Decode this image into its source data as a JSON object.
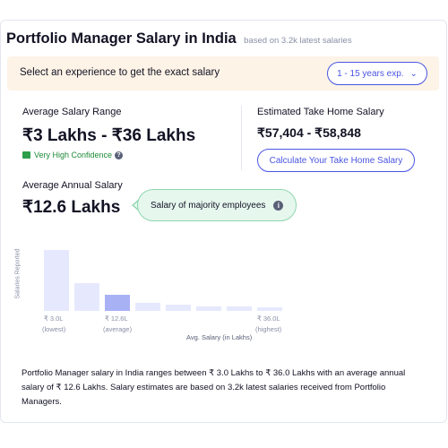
{
  "header": {
    "title": "Portfolio Manager Salary in India",
    "subtitle": "based on 3.2k latest salaries"
  },
  "banner": {
    "label": "Select an experience to get the exact salary",
    "experience_button": "1 - 15 years exp."
  },
  "salary_range": {
    "label": "Average Salary Range",
    "value": "₹3 Lakhs - ₹36 Lakhs",
    "confidence": "Very High Confidence"
  },
  "take_home": {
    "label": "Estimated Take Home Salary",
    "value": "₹57,404 - ₹58,848",
    "button": "Calculate Your Take Home Salary"
  },
  "annual": {
    "label": "Average Annual Salary",
    "value": "₹12.6 Lakhs",
    "tooltip": "Salary of majority employees"
  },
  "chart_data": {
    "type": "bar",
    "ylabel": "Salaries Reported",
    "xlabel": "Avg. Salary (in Lakhs)",
    "values": [
      100,
      46,
      26,
      13,
      11,
      8,
      7,
      6
    ],
    "highlight_index": 2,
    "ticks": [
      {
        "index": 0,
        "value": "₹ 3.0L",
        "note": "(lowest)"
      },
      {
        "index": 2,
        "value": "₹ 12.6L",
        "note": "(average)"
      },
      {
        "index": 7,
        "value": "₹ 36.0L",
        "note": "(highest)"
      }
    ],
    "colors": {
      "bar": "#e6e9fd",
      "highlight": "#a9b1f5"
    }
  },
  "description": "Portfolio Manager salary in India ranges between ₹ 3.0 Lakhs to ₹ 36.0 Lakhs with an average annual salary of ₹ 12.6 Lakhs. Salary estimates are based on 3.2k latest salaries received from Portfolio Managers."
}
